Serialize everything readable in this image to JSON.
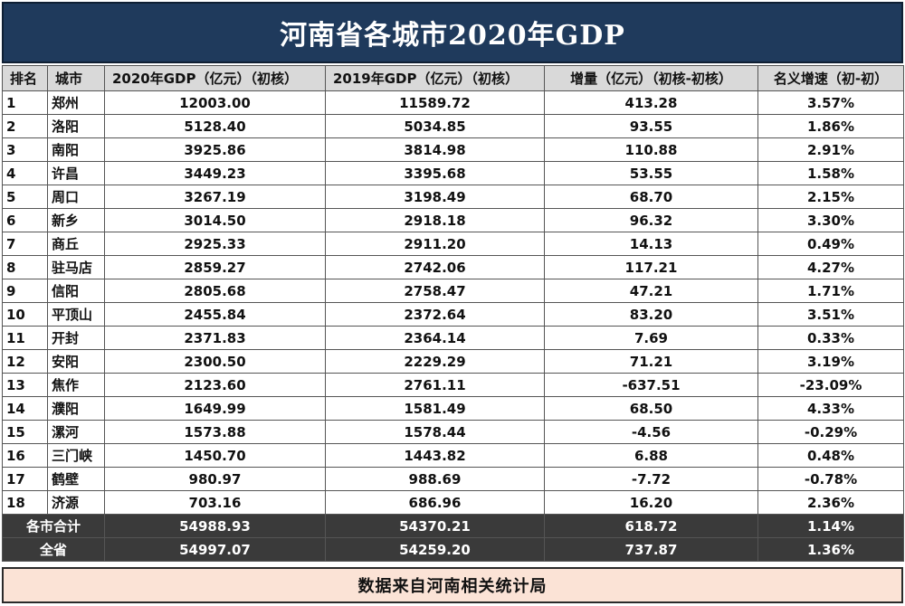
{
  "title": "河南省各城市2020年GDP",
  "headers": [
    "排名",
    "城市",
    "2020年GDP（亿元）（初核）",
    "2019年GDP（亿元）（初核）",
    "增量（亿元）（初核-初核）",
    "名义增速（初-初）"
  ],
  "rows": [
    {
      "rank": "1",
      "city": "郑州",
      "gdp2020": "12003.00",
      "gdp2019": "11589.72",
      "increase": "413.28",
      "growth": "3.57%"
    },
    {
      "rank": "2",
      "city": "洛阳",
      "gdp2020": "5128.40",
      "gdp2019": "5034.85",
      "increase": "93.55",
      "growth": "1.86%"
    },
    {
      "rank": "3",
      "city": "南阳",
      "gdp2020": "3925.86",
      "gdp2019": "3814.98",
      "increase": "110.88",
      "growth": "2.91%"
    },
    {
      "rank": "4",
      "city": "许昌",
      "gdp2020": "3449.23",
      "gdp2019": "3395.68",
      "increase": "53.55",
      "growth": "1.58%"
    },
    {
      "rank": "5",
      "city": "周口",
      "gdp2020": "3267.19",
      "gdp2019": "3198.49",
      "increase": "68.70",
      "growth": "2.15%"
    },
    {
      "rank": "6",
      "city": "新乡",
      "gdp2020": "3014.50",
      "gdp2019": "2918.18",
      "increase": "96.32",
      "growth": "3.30%"
    },
    {
      "rank": "7",
      "city": "商丘",
      "gdp2020": "2925.33",
      "gdp2019": "2911.20",
      "increase": "14.13",
      "growth": "0.49%"
    },
    {
      "rank": "8",
      "city": "驻马店",
      "gdp2020": "2859.27",
      "gdp2019": "2742.06",
      "increase": "117.21",
      "growth": "4.27%"
    },
    {
      "rank": "9",
      "city": "信阳",
      "gdp2020": "2805.68",
      "gdp2019": "2758.47",
      "increase": "47.21",
      "growth": "1.71%"
    },
    {
      "rank": "10",
      "city": "平顶山",
      "gdp2020": "2455.84",
      "gdp2019": "2372.64",
      "increase": "83.20",
      "growth": "3.51%"
    },
    {
      "rank": "11",
      "city": "开封",
      "gdp2020": "2371.83",
      "gdp2019": "2364.14",
      "increase": "7.69",
      "growth": "0.33%"
    },
    {
      "rank": "12",
      "city": "安阳",
      "gdp2020": "2300.50",
      "gdp2019": "2229.29",
      "increase": "71.21",
      "growth": "3.19%"
    },
    {
      "rank": "13",
      "city": "焦作",
      "gdp2020": "2123.60",
      "gdp2019": "2761.11",
      "increase": "-637.51",
      "growth": "-23.09%"
    },
    {
      "rank": "14",
      "city": "濮阳",
      "gdp2020": "1649.99",
      "gdp2019": "1581.49",
      "increase": "68.50",
      "growth": "4.33%"
    },
    {
      "rank": "15",
      "city": "漯河",
      "gdp2020": "1573.88",
      "gdp2019": "1578.44",
      "increase": "-4.56",
      "growth": "-0.29%"
    },
    {
      "rank": "16",
      "city": "三门峡",
      "gdp2020": "1450.70",
      "gdp2019": "1443.82",
      "increase": "6.88",
      "growth": "0.48%"
    },
    {
      "rank": "17",
      "city": "鹤壁",
      "gdp2020": "980.97",
      "gdp2019": "988.69",
      "increase": "-7.72",
      "growth": "-0.78%"
    },
    {
      "rank": "18",
      "city": "济源",
      "gdp2020": "703.16",
      "gdp2019": "686.96",
      "increase": "16.20",
      "growth": "2.36%"
    }
  ],
  "summary": [
    {
      "label": "各市合计",
      "gdp2020": "54988.93",
      "gdp2019": "54370.21",
      "increase": "618.72",
      "growth": "1.14%"
    },
    {
      "label": "全省",
      "gdp2020": "54997.07",
      "gdp2019": "54259.20",
      "increase": "737.87",
      "growth": "1.36%"
    }
  ],
  "footer": "数据来自河南相关统计局",
  "colors": {
    "title_bg": "#1f3a5c",
    "header_bg": "#d9d9d9",
    "summary_bg": "#3a3a3a",
    "footer_bg": "#fbe3d6"
  }
}
